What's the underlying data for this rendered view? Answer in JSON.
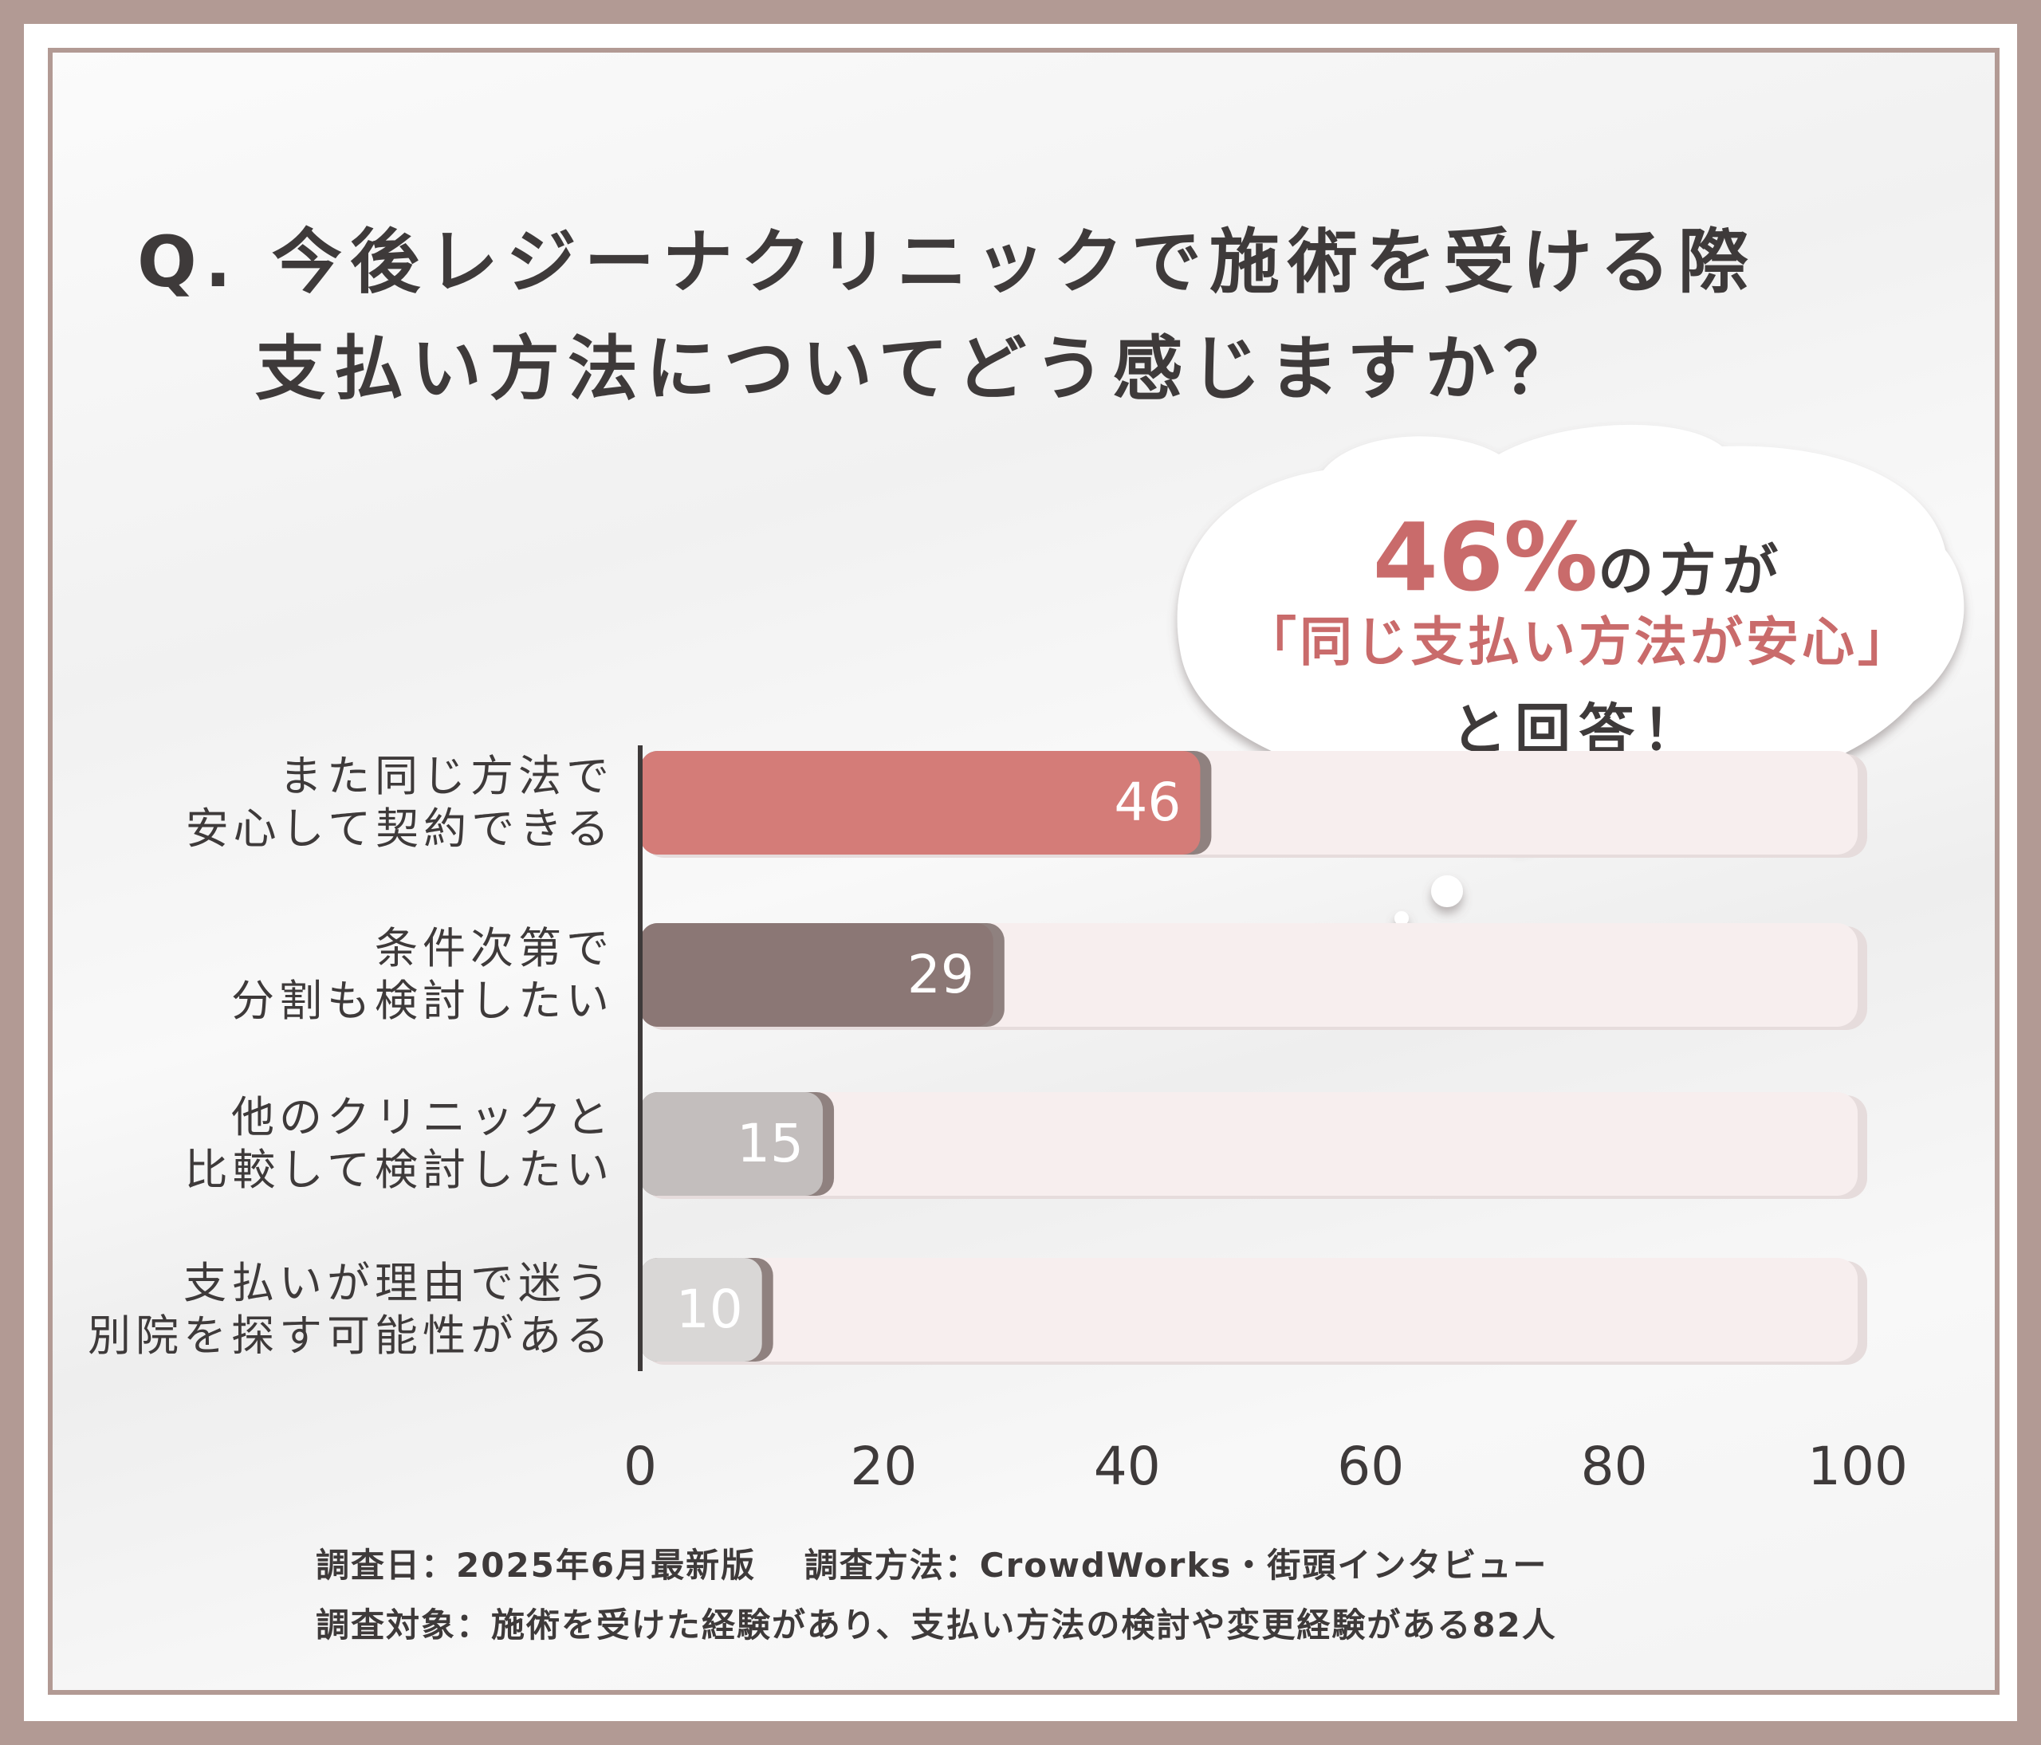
{
  "question": {
    "line1": "Q. 今後レジーナクリニックで施術を受ける際",
    "line2": "支払い方法についてどう感じますか？"
  },
  "callout": {
    "highlight_number": "46%",
    "line1_rest": "の方が",
    "line2": "「同じ支払い方法が安心」",
    "line3": "と回答！",
    "accent_color": "#c96b6b"
  },
  "chart_data": {
    "type": "bar",
    "orientation": "horizontal",
    "categories": [
      [
        "また同じ方法で",
        "安心して契約できる"
      ],
      [
        "条件次第で",
        "分割も検討したい"
      ],
      [
        "他のクリニックと",
        "比較して検討したい"
      ],
      [
        "支払いが理由で迷う",
        "別院を探す可能性がある"
      ]
    ],
    "values": [
      46,
      29,
      15,
      10
    ],
    "value_labels": [
      "46",
      "29",
      "15",
      "10"
    ],
    "xlim": [
      0,
      100
    ],
    "x_ticks": [
      "0",
      "20",
      "40",
      "60",
      "80",
      "100"
    ],
    "bar_colors": [
      "#d47c78",
      "#8b7775",
      "#c3bebd",
      "#d9d7d6"
    ],
    "track_color": "#f7eeee",
    "grid": false
  },
  "footer": {
    "line1": "調査日：2025年6月最新版　 調査方法：CrowdWorks・街頭インタビュー",
    "line2": "調査対象：施術を受けた経験があり、支払い方法の検討や変更経験がある82人"
  }
}
